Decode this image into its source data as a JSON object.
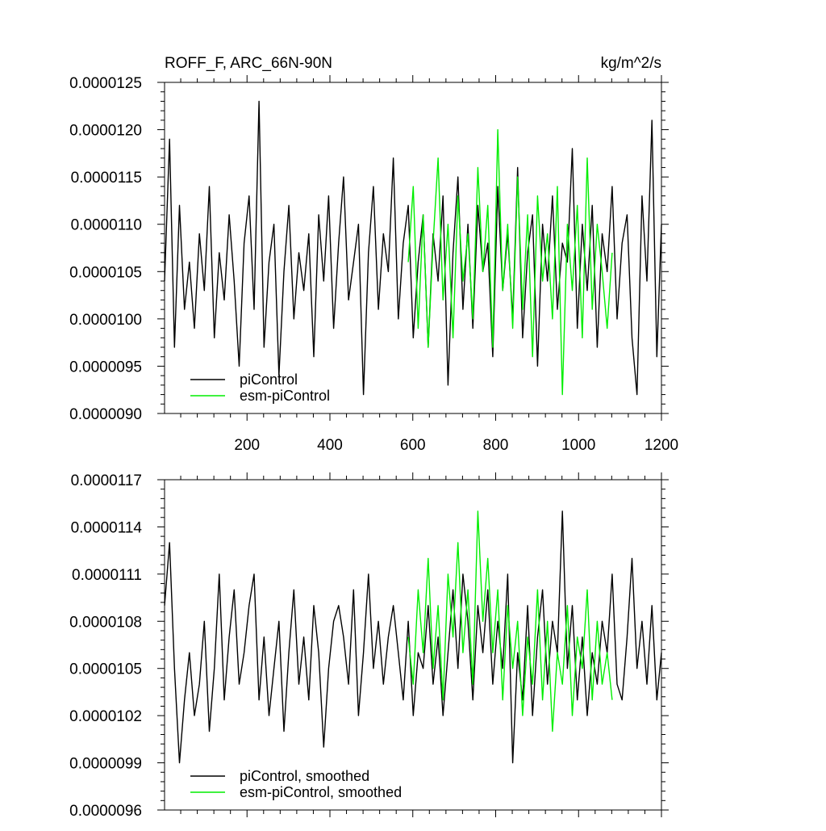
{
  "chart_data": [
    {
      "type": "line",
      "title": "ROFF_F, ARC_66N-90N",
      "title_right": "kg/m^2/s",
      "xlim": [
        1,
        1200
      ],
      "ylim": [
        9e-06,
        1.25e-05
      ],
      "xticks": [
        200,
        400,
        600,
        800,
        1000,
        1200
      ],
      "yticks": [
        9e-06,
        9.5e-06,
        1e-05,
        1.05e-05,
        1.1e-05,
        1.15e-05,
        1.2e-05,
        1.25e-05
      ],
      "ytick_labels": [
        "0.0000090",
        "0.0000095",
        "0.0000100",
        "0.0000105",
        "0.0000110",
        "0.0000115",
        "0.0000120",
        "0.0000125"
      ],
      "xtick_labels": [
        "200",
        "400",
        "600",
        "800",
        "1000",
        "1200"
      ],
      "legend_position": "bottom-left",
      "series": [
        {
          "name": "piControl",
          "color": "#000000",
          "x": [
            1,
            13,
            25,
            37,
            49,
            61,
            73,
            85,
            97,
            109,
            121,
            133,
            145,
            157,
            169,
            181,
            193,
            205,
            217,
            229,
            241,
            253,
            265,
            277,
            289,
            301,
            313,
            325,
            337,
            349,
            361,
            373,
            385,
            397,
            409,
            421,
            433,
            445,
            457,
            469,
            481,
            493,
            505,
            517,
            529,
            541,
            553,
            565,
            577,
            589,
            601,
            613,
            625,
            637,
            649,
            661,
            673,
            685,
            697,
            709,
            721,
            733,
            745,
            757,
            769,
            781,
            793,
            805,
            817,
            829,
            841,
            853,
            865,
            877,
            889,
            901,
            913,
            925,
            937,
            949,
            961,
            973,
            985,
            997,
            1009,
            1021,
            1033,
            1045,
            1057,
            1069,
            1081,
            1093,
            1105,
            1117,
            1129,
            1141,
            1153,
            1165,
            1177,
            1189,
            1200
          ],
          "y": [
            1.04e-05,
            1.19e-05,
            9.7e-06,
            1.12e-05,
            1.01e-05,
            1.06e-05,
            9.9e-06,
            1.09e-05,
            1.03e-05,
            1.14e-05,
            9.8e-06,
            1.07e-05,
            1.02e-05,
            1.11e-05,
            1.04e-05,
            9.5e-06,
            1.08e-05,
            1.13e-05,
            1.01e-05,
            1.23e-05,
            9.7e-06,
            1.06e-05,
            1.1e-05,
            9.4e-06,
            1.05e-05,
            1.12e-05,
            1e-05,
            1.07e-05,
            1.03e-05,
            1.09e-05,
            9.6e-06,
            1.11e-05,
            1.04e-05,
            1.13e-05,
            9.9e-06,
            1.08e-05,
            1.15e-05,
            1.02e-05,
            1.06e-05,
            1.1e-05,
            9.2e-06,
            1.07e-05,
            1.14e-05,
            1.01e-05,
            1.09e-05,
            1.05e-05,
            1.17e-05,
            1e-05,
            1.08e-05,
            1.12e-05,
            9.8e-06,
            1.06e-05,
            1.11e-05,
            9.7e-06,
            1.09e-05,
            1.04e-05,
            1.13e-05,
            9.3e-06,
            1.07e-05,
            1.15e-05,
            1.01e-05,
            1.1e-05,
            9.9e-06,
            1.12e-05,
            1.05e-05,
            1.08e-05,
            9.6e-06,
            1.14e-05,
            1.03e-05,
            1.09e-05,
            1e-05,
            1.16e-05,
            9.8e-06,
            1.07e-05,
            1.11e-05,
            9.5e-06,
            1.1e-05,
            1.04e-05,
            1.13e-05,
            1.01e-05,
            1.08e-05,
            1.06e-05,
            1.18e-05,
            9.9e-06,
            1.1e-05,
            1.03e-05,
            1.12e-05,
            9.7e-06,
            1.09e-05,
            1.05e-05,
            1.14e-05,
            1e-05,
            1.08e-05,
            1.11e-05,
            9.8e-06,
            9.2e-06,
            1.13e-05,
            1.04e-05,
            1.21e-05,
            9.6e-06,
            1.1e-05
          ]
        },
        {
          "name": "esm-piControl",
          "color": "#00ee00",
          "x": [
            589,
            601,
            613,
            625,
            637,
            649,
            661,
            673,
            685,
            697,
            709,
            721,
            733,
            745,
            757,
            769,
            781,
            793,
            805,
            817,
            829,
            841,
            853,
            865,
            877,
            889,
            901,
            913,
            925,
            937,
            949,
            961,
            973,
            985,
            997,
            1009,
            1021,
            1033,
            1045,
            1057,
            1069,
            1081
          ],
          "y": [
            1.06e-05,
            1.14e-05,
            9.9e-06,
            1.11e-05,
            9.7e-06,
            1.08e-05,
            1.17e-05,
            1.02e-05,
            1.1e-05,
            9.8e-06,
            1.13e-05,
            1.04e-05,
            1.09e-05,
            1e-05,
            1.16e-05,
            1.05e-05,
            1.12e-05,
            9.7e-06,
            1.2e-05,
            1.03e-05,
            1.1e-05,
            9.9e-06,
            1.15e-05,
            1.01e-05,
            1.11e-05,
            9.6e-06,
            1.13e-05,
            1.04e-05,
            1.09e-05,
            1e-05,
            1.14e-05,
            9.2e-06,
            1.1e-05,
            1.03e-05,
            1.12e-05,
            9.8e-06,
            1.17e-05,
            1.01e-05,
            1.1e-05,
            1.05e-05,
            9.9e-06,
            1.07e-05
          ]
        }
      ]
    },
    {
      "type": "line",
      "xlim": [
        1,
        1200
      ],
      "ylim": [
        9.6e-06,
        1.17e-05
      ],
      "xticks": [
        200,
        400,
        600,
        800,
        1000,
        1200
      ],
      "yticks": [
        9.6e-06,
        9.9e-06,
        1.02e-05,
        1.05e-05,
        1.08e-05,
        1.11e-05,
        1.14e-05,
        1.17e-05
      ],
      "ytick_labels": [
        "0.0000096",
        "0.0000099",
        "0.0000102",
        "0.0000105",
        "0.0000108",
        "0.0000111",
        "0.0000114",
        "0.0000117"
      ],
      "legend_position": "bottom-left",
      "series": [
        {
          "name": "piControl, smoothed",
          "color": "#000000",
          "x": [
            1,
            13,
            25,
            37,
            49,
            61,
            73,
            85,
            97,
            109,
            121,
            133,
            145,
            157,
            169,
            181,
            193,
            205,
            217,
            229,
            241,
            253,
            265,
            277,
            289,
            301,
            313,
            325,
            337,
            349,
            361,
            373,
            385,
            397,
            409,
            421,
            433,
            445,
            457,
            469,
            481,
            493,
            505,
            517,
            529,
            541,
            553,
            565,
            577,
            589,
            601,
            613,
            625,
            637,
            649,
            661,
            673,
            685,
            697,
            709,
            721,
            733,
            745,
            757,
            769,
            781,
            793,
            805,
            817,
            829,
            841,
            853,
            865,
            877,
            889,
            901,
            913,
            925,
            937,
            949,
            961,
            973,
            985,
            997,
            1009,
            1021,
            1033,
            1045,
            1057,
            1069,
            1081,
            1093,
            1105,
            1117,
            1129,
            1141,
            1153,
            1165,
            1177,
            1189,
            1200
          ],
          "y": [
            1.09e-05,
            1.13e-05,
            1.05e-05,
            9.9e-06,
            1.03e-05,
            1.06e-05,
            1.02e-05,
            1.04e-05,
            1.08e-05,
            1.01e-05,
            1.05e-05,
            1.11e-05,
            1.03e-05,
            1.07e-05,
            1.1e-05,
            1.04e-05,
            1.06e-05,
            1.09e-05,
            1.11e-05,
            1.03e-05,
            1.07e-05,
            1.02e-05,
            1.05e-05,
            1.08e-05,
            1.01e-05,
            1.06e-05,
            1.1e-05,
            1.04e-05,
            1.07e-05,
            1.03e-05,
            1.09e-05,
            1.06e-05,
            1e-05,
            1.05e-05,
            1.08e-05,
            1.09e-05,
            1.07e-05,
            1.04e-05,
            1.1e-05,
            1.02e-05,
            1.06e-05,
            1.11e-05,
            1.05e-05,
            1.08e-05,
            1.04e-05,
            1.07e-05,
            1.09e-05,
            1.06e-05,
            1.03e-05,
            1.08e-05,
            1.02e-05,
            1.06e-05,
            1.05e-05,
            1.09e-05,
            1.04e-05,
            1.07e-05,
            1.02e-05,
            1.06e-05,
            1.1e-05,
            1.05e-05,
            1.11e-05,
            1.08e-05,
            1.03e-05,
            1.09e-05,
            1.06e-05,
            1.1e-05,
            1.04e-05,
            1.08e-05,
            1.05e-05,
            1.11e-05,
            9.9e-06,
            1.06e-05,
            1.03e-05,
            1.09e-05,
            1.02e-05,
            1.07e-05,
            1.1e-05,
            1.04e-05,
            1.08e-05,
            1.06e-05,
            1.15e-05,
            1.05e-05,
            1.09e-05,
            1.03e-05,
            1.07e-05,
            1.02e-05,
            1.06e-05,
            1.04e-05,
            1.08e-05,
            1.06e-05,
            1.11e-05,
            1.04e-05,
            1.03e-05,
            1.07e-05,
            1.12e-05,
            1.05e-05,
            1.08e-05,
            1.04e-05,
            1.09e-05,
            1.03e-05,
            1.06e-05
          ]
        },
        {
          "name": "esm-piControl, smoothed",
          "color": "#00ee00",
          "x": [
            589,
            601,
            613,
            625,
            637,
            649,
            661,
            673,
            685,
            697,
            709,
            721,
            733,
            745,
            757,
            769,
            781,
            793,
            805,
            817,
            829,
            841,
            853,
            865,
            877,
            889,
            901,
            913,
            925,
            937,
            949,
            961,
            973,
            985,
            997,
            1009,
            1021,
            1033,
            1045,
            1057,
            1069,
            1081
          ],
          "y": [
            1.07e-05,
            1.04e-05,
            1.1e-05,
            1.06e-05,
            1.12e-05,
            1.05e-05,
            1.09e-05,
            1.03e-05,
            1.11e-05,
            1.07e-05,
            1.13e-05,
            1.06e-05,
            1.1e-05,
            1.04e-05,
            1.15e-05,
            1.08e-05,
            1.12e-05,
            1.06e-05,
            1.1e-05,
            1.03e-05,
            1.09e-05,
            1.05e-05,
            1.08e-05,
            1.02e-05,
            1.07e-05,
            1.04e-05,
            1.1e-05,
            1.03e-05,
            1.08e-05,
            1.01e-05,
            1.06e-05,
            1.04e-05,
            1.09e-05,
            1.02e-05,
            1.07e-05,
            1.05e-05,
            1.1e-05,
            1.03e-05,
            1.08e-05,
            1.04e-05,
            1.06e-05,
            1.03e-05
          ]
        }
      ]
    }
  ]
}
